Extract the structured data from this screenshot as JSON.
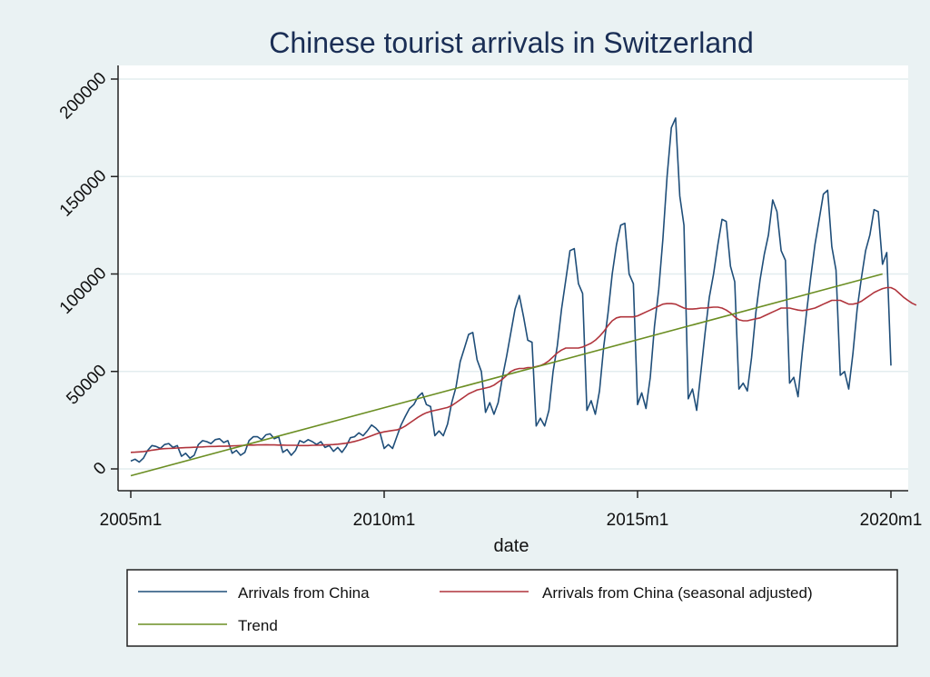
{
  "chart_data": {
    "type": "line",
    "title": "Chinese tourist arrivals in Switzerland",
    "xlabel": "date",
    "ylabel": "",
    "xlim": [
      "2005m1",
      "2020m1"
    ],
    "ylim": [
      0,
      200000
    ],
    "x_ticks": [
      "2005m1",
      "2010m1",
      "2015m1",
      "2020m1"
    ],
    "y_ticks": [
      "0",
      "50000",
      "100000",
      "150000",
      "200000"
    ],
    "grid": true,
    "legend_position": "bottom",
    "x_start": "2005m1",
    "series": [
      {
        "name": "Arrivals from China",
        "color": "#1f4e79",
        "values": [
          4000,
          5000,
          3500,
          5500,
          9500,
          12000,
          11500,
          10500,
          12500,
          13000,
          11000,
          12000,
          6500,
          8000,
          5500,
          7000,
          12500,
          14500,
          14000,
          13000,
          15000,
          15500,
          13500,
          14500,
          8000,
          9500,
          7000,
          8500,
          14500,
          16500,
          16500,
          15000,
          17500,
          18000,
          15500,
          16500,
          8500,
          10000,
          7000,
          9500,
          14500,
          13500,
          15000,
          14000,
          12500,
          14000,
          11000,
          12000,
          9000,
          11000,
          8500,
          11500,
          16000,
          16500,
          18500,
          17000,
          19500,
          22500,
          21000,
          18500,
          10500,
          12500,
          10500,
          16500,
          22500,
          27000,
          31000,
          33000,
          37000,
          39000,
          33000,
          32000,
          17000,
          19500,
          17000,
          23000,
          34000,
          42000,
          55000,
          62000,
          69000,
          70000,
          56000,
          50000,
          29000,
          34000,
          28000,
          34000,
          47000,
          58000,
          70000,
          82000,
          89000,
          78000,
          66000,
          65000,
          22000,
          26000,
          22000,
          30000,
          50000,
          63000,
          82000,
          97000,
          112000,
          113000,
          95000,
          90000,
          30000,
          35000,
          28000,
          40000,
          63000,
          80000,
          100000,
          115000,
          125000,
          126000,
          100000,
          95000,
          33000,
          39000,
          31000,
          47000,
          73000,
          92000,
          118000,
          150000,
          175000,
          180000,
          140000,
          125000,
          36000,
          41000,
          30000,
          50000,
          70000,
          88000,
          100000,
          115000,
          128000,
          127000,
          104000,
          96000,
          41000,
          44000,
          40000,
          57000,
          80000,
          97000,
          110000,
          120000,
          138000,
          132000,
          112000,
          107000,
          44000,
          47000,
          37000,
          60000,
          80000,
          98000,
          115000,
          128000,
          141000,
          143000,
          114000,
          102000,
          48000,
          50000,
          41000,
          59000,
          82000,
          98000,
          112000,
          120000,
          133000,
          132000,
          105000,
          111000,
          53000
        ]
      },
      {
        "name": "Arrivals from China (seasonal adjusted)",
        "color": "#b0343c",
        "values": [
          8500,
          8600,
          8700,
          8900,
          9200,
          9600,
          9900,
          10200,
          10400,
          10500,
          10600,
          10700,
          10800,
          10900,
          11000,
          11100,
          11200,
          11300,
          11400,
          11500,
          11500,
          11600,
          11600,
          11700,
          11800,
          11900,
          12000,
          12100,
          12200,
          12200,
          12300,
          12300,
          12400,
          12300,
          12300,
          12200,
          12200,
          12100,
          12100,
          12100,
          12000,
          12000,
          12000,
          12100,
          12100,
          12200,
          12300,
          12400,
          12500,
          12700,
          12900,
          13200,
          13600,
          14100,
          14700,
          15400,
          16200,
          17000,
          17800,
          18500,
          19000,
          19400,
          19700,
          20000,
          20800,
          22000,
          23500,
          25000,
          26500,
          27800,
          28800,
          29500,
          30000,
          30500,
          31000,
          31500,
          32500,
          34000,
          35500,
          37000,
          38500,
          39500,
          40500,
          41000,
          41500,
          42000,
          43000,
          44500,
          46000,
          48000,
          50000,
          51000,
          51500,
          51500,
          52000,
          52000,
          52500,
          53000,
          54000,
          55500,
          57500,
          59500,
          61000,
          62000,
          62000,
          62000,
          62000,
          62500,
          63500,
          64500,
          66000,
          68000,
          70500,
          73500,
          76000,
          77500,
          78000,
          78000,
          78000,
          78000,
          78500,
          79500,
          80500,
          81500,
          82500,
          83500,
          84500,
          84800,
          84800,
          84500,
          83500,
          82500,
          82000,
          82000,
          82200,
          82500,
          82500,
          82800,
          83000,
          83000,
          82500,
          81500,
          80000,
          78000,
          76500,
          76000,
          76000,
          76500,
          77000,
          77500,
          78500,
          79500,
          80500,
          81500,
          82500,
          82500,
          82500,
          82000,
          81500,
          81200,
          81500,
          82000,
          82500,
          83500,
          84500,
          85500,
          86500,
          86500,
          86500,
          85500,
          84500,
          84500,
          85000,
          86000,
          87500,
          89000,
          90500,
          91500,
          92500,
          93000,
          93000,
          92000,
          90000,
          88000,
          86500,
          85000,
          84000
        ]
      },
      {
        "name": "Trend",
        "color": "#6b8e23",
        "endpoints": [
          [
            0,
            -3500
          ],
          [
            178,
            100000
          ]
        ]
      }
    ]
  }
}
